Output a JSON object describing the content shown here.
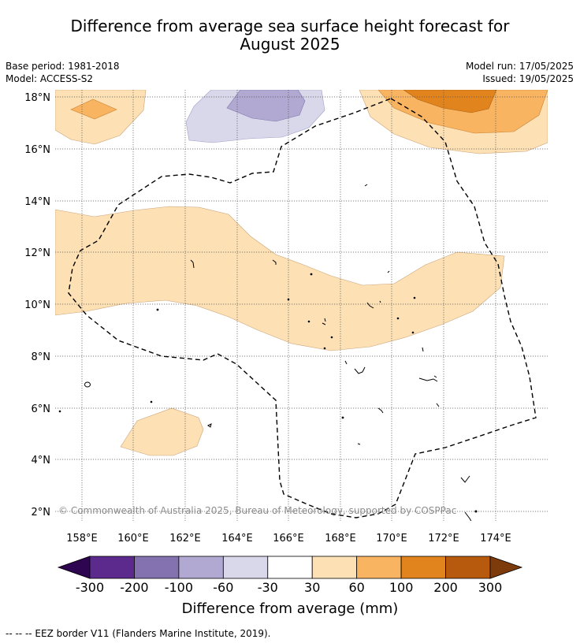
{
  "title": {
    "line1": "Difference from average sea surface height forecast for",
    "line2": "August 2025"
  },
  "meta": {
    "base_period": "Base period: 1981-2018",
    "model": "Model: ACCESS-S2",
    "model_run": "Model run: 17/05/2025",
    "issued": "Issued: 19/05/2025"
  },
  "map": {
    "lat_ticks": [
      "18°N",
      "16°N",
      "14°N",
      "12°N",
      "10°N",
      "8°N",
      "6°N",
      "4°N",
      "2°N"
    ],
    "lon_ticks": [
      "158°E",
      "160°E",
      "162°E",
      "164°E",
      "166°E",
      "168°E",
      "170°E",
      "172°E",
      "174°E"
    ],
    "extent": {
      "lon_min": 157,
      "lon_max": 176,
      "lat_min": 1.5,
      "lat_max": 18.2
    },
    "watermark": "© Commonwealth of Australia 2025, Bureau of Meteorology, supported by COSPPac",
    "gridlines": true
  },
  "colorbar": {
    "ticks": [
      "-300",
      "-200",
      "-100",
      "-60",
      "-30",
      "30",
      "60",
      "100",
      "200",
      "300"
    ],
    "colors": [
      "#5b2a8c",
      "#8472b0",
      "#b1a9d2",
      "#d8d8ea",
      "#ffffff",
      "#fde0b4",
      "#f9b461",
      "#e2841d",
      "#b85a0d"
    ],
    "extend_low_color": "#2e0550",
    "extend_high_color": "#7d3a0b",
    "label": "Difference from average (mm)"
  },
  "footnote": "--  --  -- EEZ border V11 (Flanders Marine Institute, 2019)."
}
